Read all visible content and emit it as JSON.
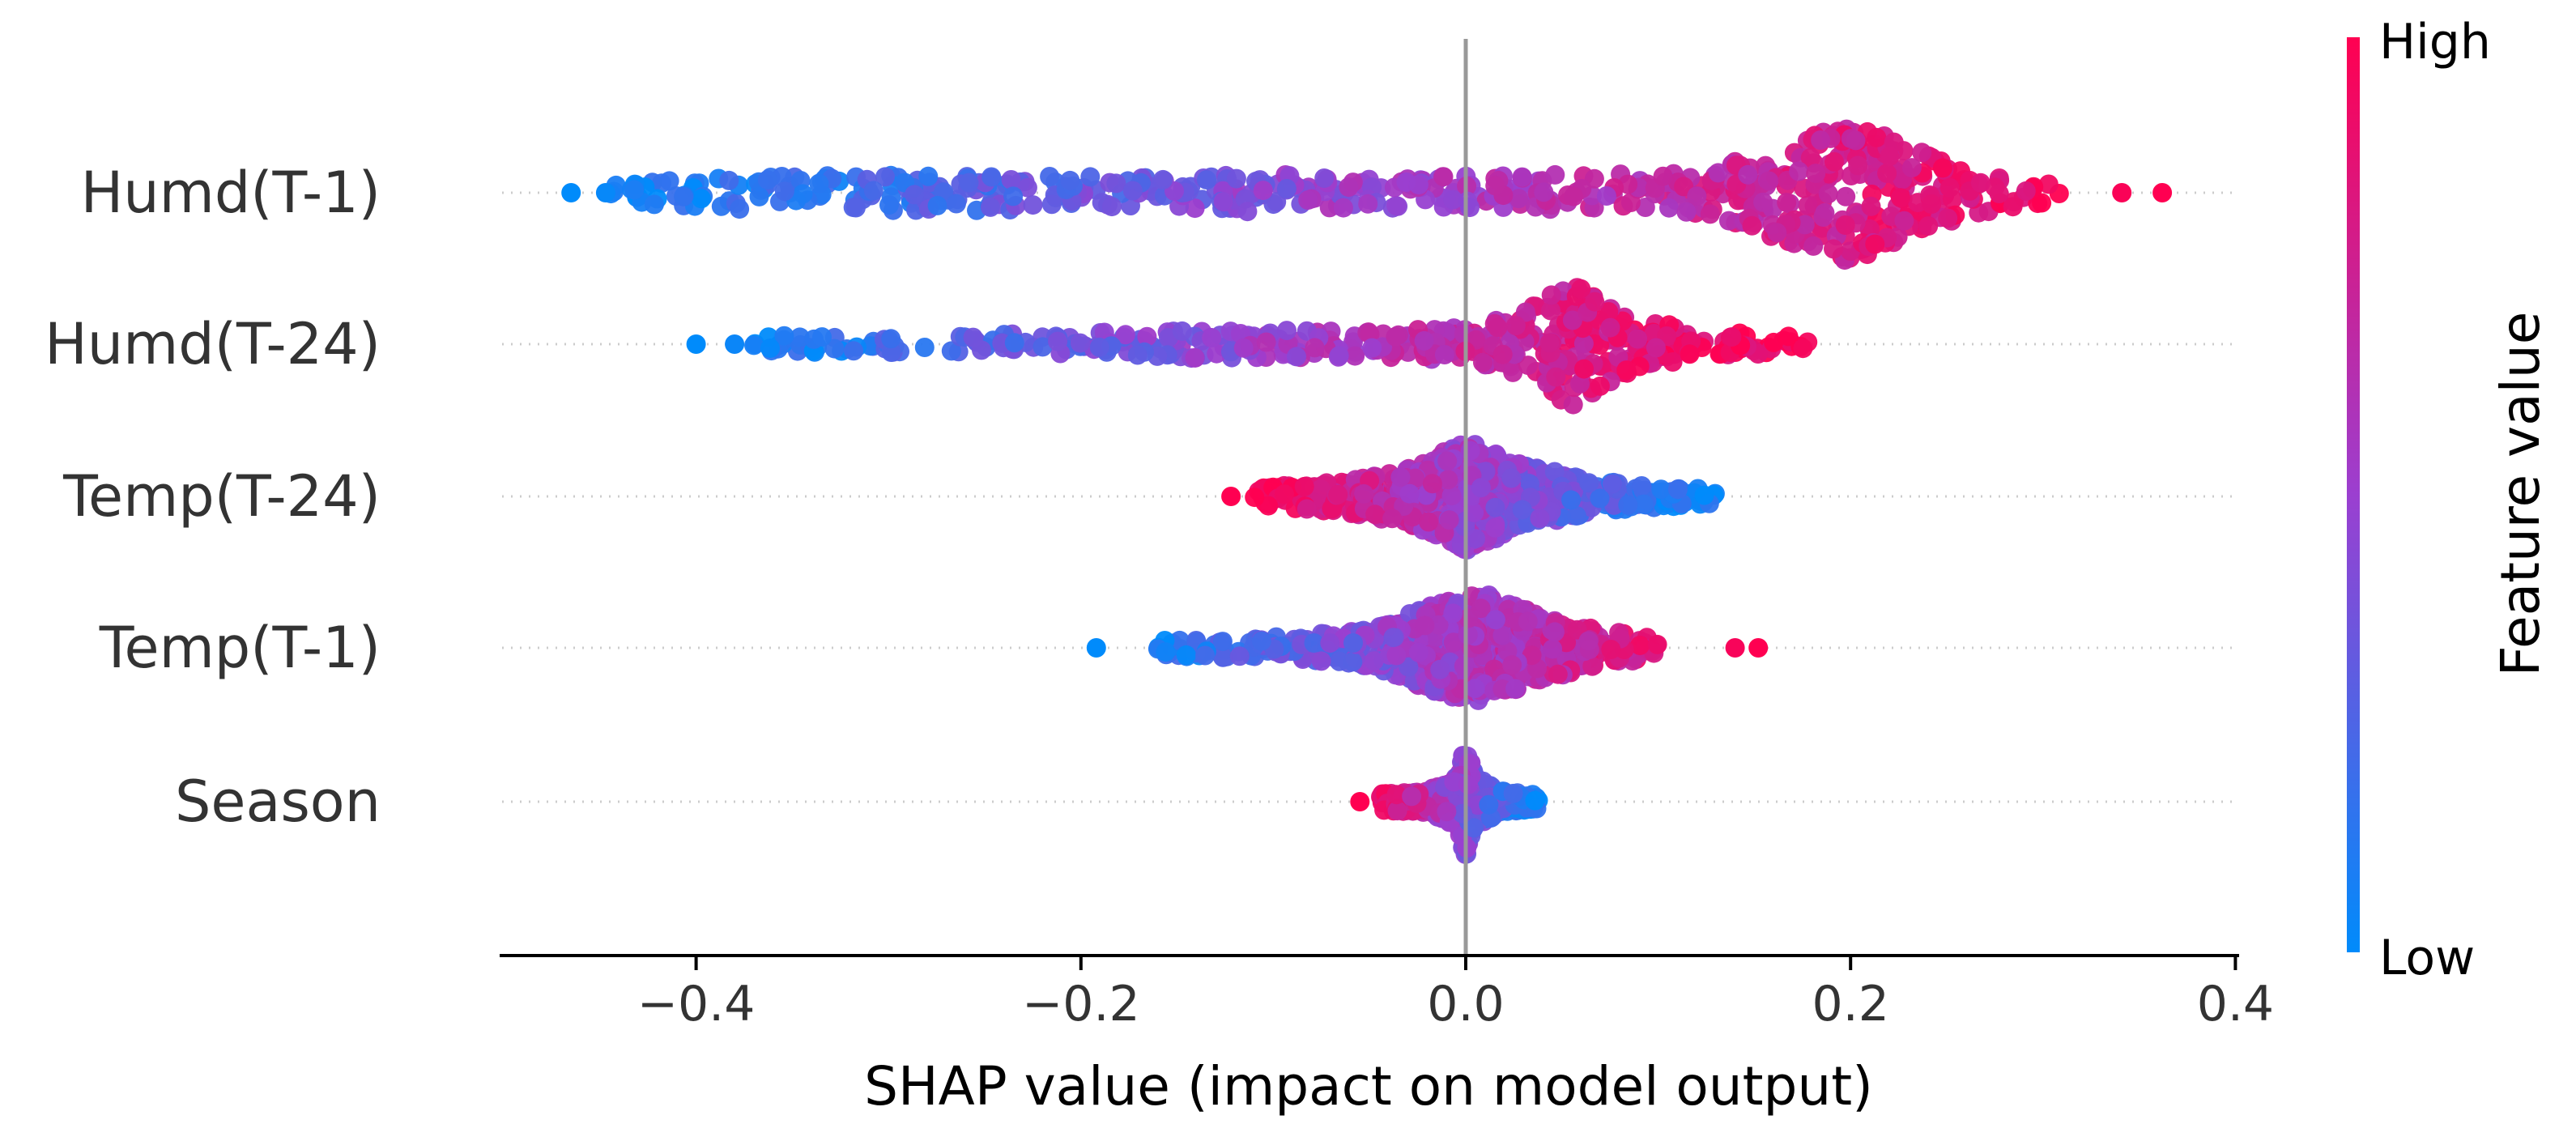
{
  "chart_data": {
    "type": "scatter",
    "subtype": "shap-beeswarm",
    "title": "",
    "xlabel": "SHAP value (impact on model output)",
    "ylabel": "",
    "xlim": [
      -0.505,
      0.405
    ],
    "xticks": [
      -0.4,
      -0.2,
      0.0,
      0.2,
      0.4
    ],
    "xtick_labels": [
      "−0.4",
      "−0.2",
      "0.0",
      "0.2",
      "0.4"
    ],
    "grid": false,
    "zero_line": 0.0,
    "colorbar": {
      "label": "Feature value",
      "high_label": "High",
      "low_label": "Low",
      "high_color": "#ff0051",
      "mid_color": "#9b3fd0",
      "low_color": "#008bfb"
    },
    "features": [
      {
        "name": "Humd(T-1)",
        "min": -0.465,
        "max": 0.362,
        "outliers": [
          -0.465,
          -0.447,
          0.341,
          0.362
        ],
        "peak": 0.2,
        "peak_density": 1.0,
        "density": [
          [
            -0.445,
            0.12
          ],
          [
            -0.4,
            0.22
          ],
          [
            -0.3,
            0.28
          ],
          [
            -0.2,
            0.24
          ],
          [
            -0.15,
            0.22
          ],
          [
            -0.1,
            0.3
          ],
          [
            -0.05,
            0.22
          ],
          [
            0.0,
            0.24
          ],
          [
            0.05,
            0.26
          ],
          [
            0.1,
            0.3
          ],
          [
            0.14,
            0.45
          ],
          [
            0.17,
            0.75
          ],
          [
            0.2,
            1.0
          ],
          [
            0.23,
            0.7
          ],
          [
            0.26,
            0.35
          ],
          [
            0.29,
            0.18
          ],
          [
            0.31,
            0.12
          ]
        ],
        "color_sign": 1
      },
      {
        "name": "Humd(T-24)",
        "min": -0.4,
        "max": 0.18,
        "outliers": [
          -0.4,
          -0.38
        ],
        "peak": 0.055,
        "peak_density": 0.92,
        "density": [
          [
            -0.37,
            0.12
          ],
          [
            -0.3,
            0.12
          ],
          [
            -0.2,
            0.16
          ],
          [
            -0.15,
            0.2
          ],
          [
            -0.1,
            0.2
          ],
          [
            -0.05,
            0.18
          ],
          [
            0.0,
            0.24
          ],
          [
            0.03,
            0.45
          ],
          [
            0.055,
            0.92
          ],
          [
            0.08,
            0.45
          ],
          [
            0.12,
            0.22
          ],
          [
            0.16,
            0.12
          ],
          [
            0.18,
            0.1
          ]
        ],
        "color_sign": 1
      },
      {
        "name": "Temp(T-24)",
        "min": -0.122,
        "max": 0.132,
        "outliers": [
          -0.122
        ],
        "peak": 0.0,
        "peak_density": 0.8,
        "density": [
          [
            -0.11,
            0.12
          ],
          [
            -0.07,
            0.22
          ],
          [
            -0.03,
            0.4
          ],
          [
            0.0,
            0.8
          ],
          [
            0.03,
            0.45
          ],
          [
            0.07,
            0.22
          ],
          [
            0.11,
            0.14
          ],
          [
            0.13,
            0.1
          ]
        ],
        "color_sign": -1
      },
      {
        "name": "Temp(T-1)",
        "min": -0.192,
        "max": 0.152,
        "outliers": [
          -0.192,
          0.14,
          0.152
        ],
        "peak": 0.0,
        "peak_density": 0.78,
        "density": [
          [
            -0.16,
            0.12
          ],
          [
            -0.1,
            0.16
          ],
          [
            -0.05,
            0.26
          ],
          [
            -0.01,
            0.7
          ],
          [
            0.01,
            0.78
          ],
          [
            0.04,
            0.45
          ],
          [
            0.08,
            0.22
          ],
          [
            0.1,
            0.12
          ]
        ],
        "color_sign": 1
      },
      {
        "name": "Season",
        "min": -0.055,
        "max": 0.04,
        "outliers": [
          -0.055
        ],
        "peak": 0.0,
        "peak_density": 0.82,
        "density": [
          [
            -0.045,
            0.12
          ],
          [
            -0.02,
            0.16
          ],
          [
            -0.005,
            0.35
          ],
          [
            0.0,
            0.82
          ],
          [
            0.005,
            0.35
          ],
          [
            0.02,
            0.15
          ],
          [
            0.038,
            0.1
          ]
        ],
        "color_sign": -1
      }
    ]
  }
}
